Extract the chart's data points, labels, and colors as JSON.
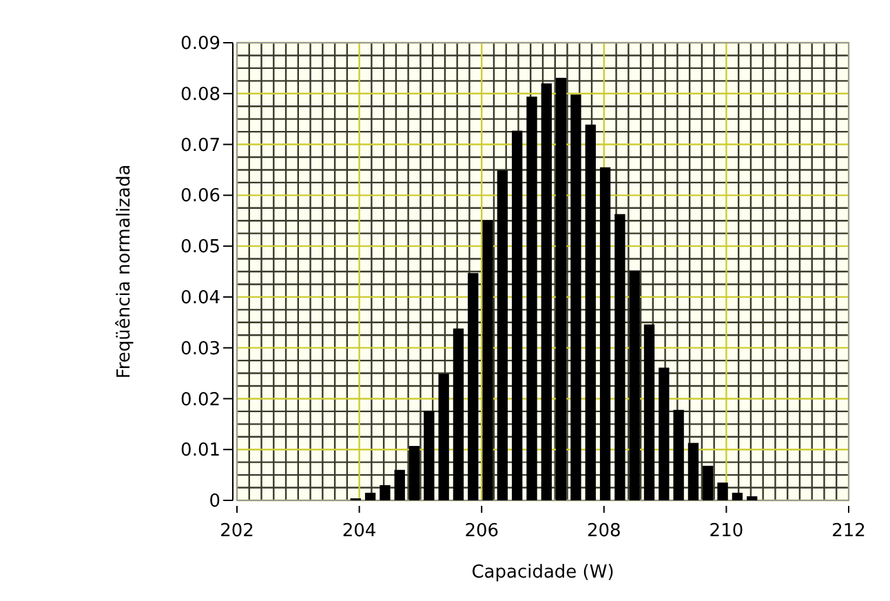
{
  "chart_data": {
    "type": "histogram",
    "xlabel": "Capacidade (W)",
    "ylabel": "Freqüência normalizada",
    "bins": [
      203.82,
      204.06,
      204.3,
      204.54,
      204.78,
      205.02,
      205.26,
      205.5,
      205.74,
      205.98,
      206.22,
      206.46,
      206.7,
      206.94,
      207.18,
      207.42,
      207.66,
      207.9,
      208.14,
      208.38,
      208.62,
      208.86,
      209.1,
      209.34,
      209.58,
      209.82,
      210.06,
      210.3,
      210.54
    ],
    "values": [
      0.0004,
      0.0015,
      0.003,
      0.006,
      0.0107,
      0.0176,
      0.0249,
      0.0338,
      0.0447,
      0.0551,
      0.0649,
      0.0727,
      0.0794,
      0.082,
      0.0831,
      0.0798,
      0.0739,
      0.0655,
      0.0563,
      0.0452,
      0.0346,
      0.0261,
      0.0178,
      0.0113,
      0.0068,
      0.0035,
      0.0015,
      0.0008
    ],
    "color": "#000000",
    "xlim": [
      202,
      212
    ],
    "xticks": [
      202,
      204,
      206,
      208,
      210,
      212
    ],
    "ylim": [
      0,
      0.09
    ],
    "yticks": [
      {
        "value": 0,
        "label": "0"
      },
      0.01,
      0.02,
      0.03,
      0.04,
      0.05,
      0.06,
      0.07,
      0.08,
      0.09
    ],
    "grid": true
  }
}
